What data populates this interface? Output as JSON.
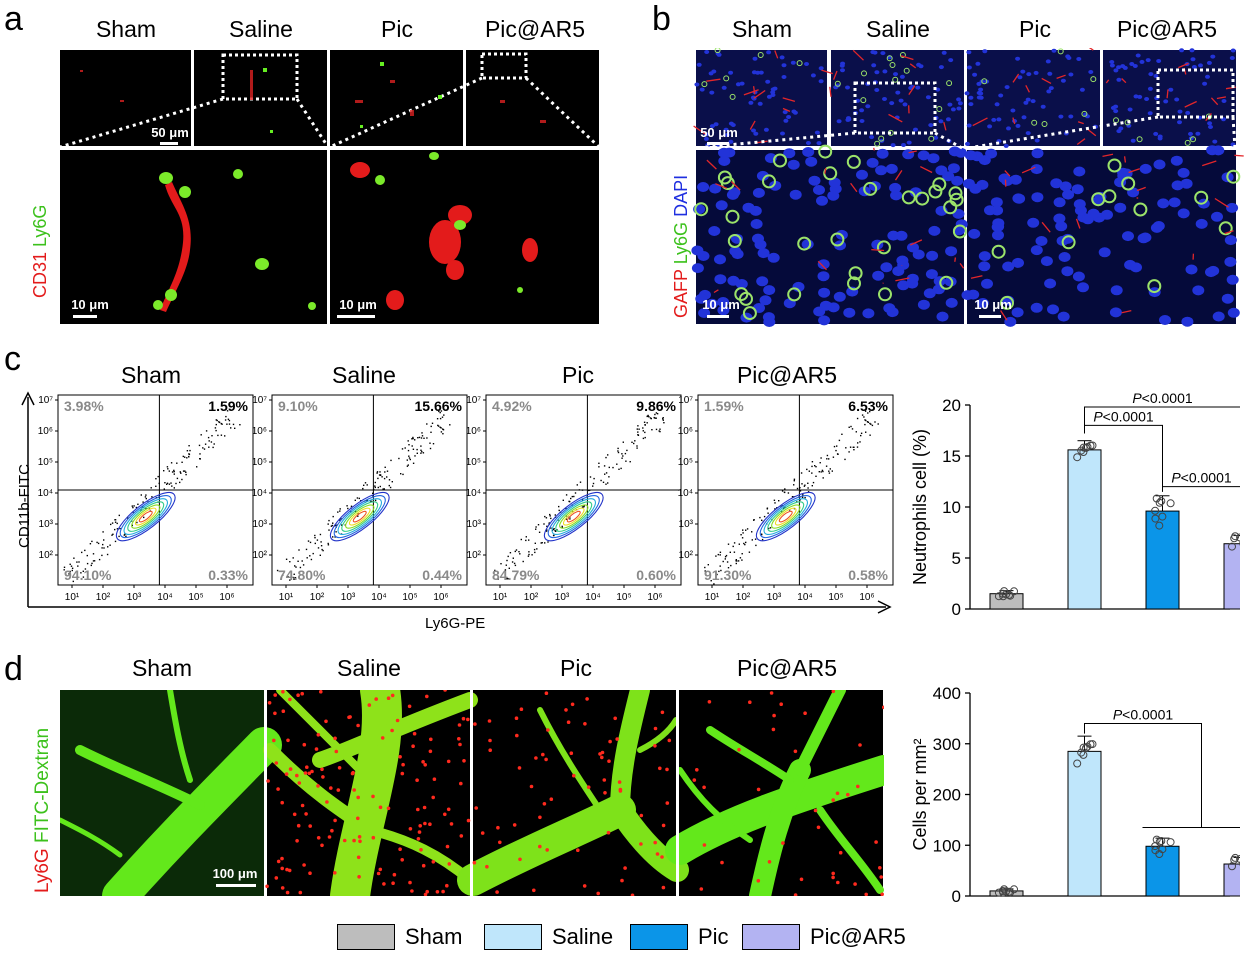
{
  "panels": {
    "a": {
      "letter": "a",
      "columns": [
        "Sham",
        "Saline",
        "Pic",
        "Pic@AR5"
      ],
      "stain_red": "CD31",
      "stain_green": "Ly6G",
      "scale_top": "50 μm",
      "scale_bottom": "10 μm"
    },
    "b": {
      "letter": "b",
      "columns": [
        "Sham",
        "Saline",
        "Pic",
        "Pic@AR5"
      ],
      "stain_red": "GAFP",
      "stain_green": "Ly6G",
      "stain_blue": "DAPI",
      "scale_top": "50 μm",
      "scale_bottom": "10 μm"
    },
    "c": {
      "letter": "c",
      "columns": [
        "Sham",
        "Saline",
        "Pic",
        "Pic@AR5"
      ],
      "y_axis": "CD11b-FITC",
      "x_axis": "Ly6G-PE",
      "quadrants": [
        {
          "ul": "3.98%",
          "ur": "1.59%",
          "ll": "94.10%",
          "lr": "0.33%"
        },
        {
          "ul": "9.10%",
          "ur": "15.66%",
          "ll": "74.80%",
          "lr": "0.44%"
        },
        {
          "ul": "4.92%",
          "ur": "9.86%",
          "ll": "84.79%",
          "lr": "0.60%"
        },
        {
          "ul": "1.59%",
          "ur": "6.53%",
          "ll": "91.30%",
          "lr": "0.58%"
        }
      ],
      "x_ticks": [
        "10¹",
        "10²",
        "10³",
        "10⁴",
        "10⁵",
        "10⁶"
      ],
      "y_ticks": [
        "10²",
        "10³",
        "10⁴",
        "10⁵",
        "10⁶",
        "10⁷"
      ]
    },
    "d": {
      "letter": "d",
      "columns": [
        "Sham",
        "Saline",
        "Pic",
        "Pic@AR5"
      ],
      "stain_red": "Ly6G",
      "stain_green": "FITC-Dextran",
      "scale": "100 μm"
    }
  },
  "chart_data": [
    {
      "type": "bar",
      "categories": [
        "Sham",
        "Saline",
        "Pic",
        "Pic@AR5"
      ],
      "values": [
        1.5,
        15.6,
        9.6,
        6.4
      ],
      "errors": [
        0.3,
        0.9,
        1.5,
        0.8
      ],
      "ylabel": "Neutrophils cell (%)",
      "ylim": [
        0,
        20
      ],
      "yticks": [
        0,
        5,
        10,
        15,
        20
      ],
      "significance": [
        {
          "pair": [
            "Saline",
            "Pic@AR5"
          ],
          "label": "P<0.0001"
        },
        {
          "pair": [
            "Saline",
            "Pic"
          ],
          "label": "P<0.0001"
        },
        {
          "pair": [
            "Pic",
            "Pic@AR5"
          ],
          "label": "P<0.0001"
        }
      ]
    },
    {
      "type": "bar",
      "categories": [
        "Sham",
        "Saline",
        "Pic",
        "Pic@AR5"
      ],
      "values": [
        10,
        285,
        98,
        63
      ],
      "errors": [
        4,
        30,
        16,
        13
      ],
      "ylabel": "Cells per mm²",
      "ylim": [
        0,
        400
      ],
      "yticks": [
        0,
        100,
        200,
        300,
        400
      ],
      "significance": [
        {
          "pair": [
            "Saline",
            "Pic / Pic@AR5"
          ],
          "label": "P<0.0001"
        }
      ]
    }
  ],
  "legend": [
    {
      "label": "Sham",
      "color": "#bdbdbd"
    },
    {
      "label": "Saline",
      "color": "#bfe6fb"
    },
    {
      "label": "Pic",
      "color": "#0b95e8"
    },
    {
      "label": "Pic@AR5",
      "color": "#b3b3f2"
    }
  ]
}
